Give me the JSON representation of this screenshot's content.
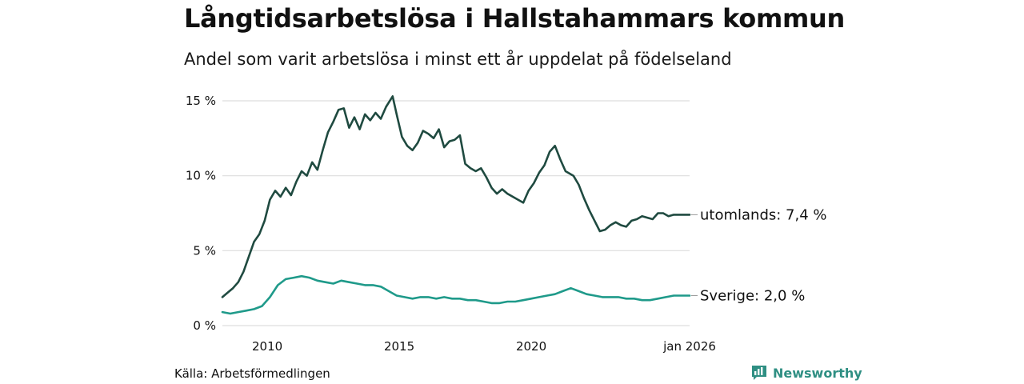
{
  "header": {
    "title": "Långtidsarbetslösa i Hallstahammars kommun",
    "subtitle": "Andel som varit arbetslösa i minst ett år uppdelat på födelseland"
  },
  "footer": {
    "source": "Källa: Arbetsförmedlingen",
    "brand": "Newsworthy"
  },
  "colors": {
    "utomlands": "#1f4a40",
    "sverige": "#1f9a8a",
    "grid": "#dddddd",
    "brand": "#2f8f83"
  },
  "chart_data": {
    "type": "line",
    "title": "Långtidsarbetslösa i Hallstahammars kommun",
    "subtitle": "Andel som varit arbetslösa i minst ett år uppdelat på födelseland",
    "xlabel": "",
    "ylabel": "",
    "x_range": [
      2008.3,
      2026.0
    ],
    "ylim": [
      0,
      15
    ],
    "y_ticks": [
      {
        "value": 0,
        "label": "0 %"
      },
      {
        "value": 5,
        "label": "5 %"
      },
      {
        "value": 10,
        "label": "10 %"
      },
      {
        "value": 15,
        "label": "15 %"
      }
    ],
    "x_ticks": [
      {
        "value": 2010,
        "label": "2010"
      },
      {
        "value": 2015,
        "label": "2015"
      },
      {
        "value": 2020,
        "label": "2020"
      },
      {
        "value": 2026,
        "label": "jan 2026"
      }
    ],
    "grid": true,
    "series": [
      {
        "name": "utomlands",
        "end_label": "utomlands: 7,4 %",
        "color": "#1f4a40",
        "x": [
          2008.3,
          2008.5,
          2008.7,
          2008.9,
          2009.1,
          2009.3,
          2009.5,
          2009.7,
          2009.9,
          2010.1,
          2010.3,
          2010.5,
          2010.7,
          2010.9,
          2011.1,
          2011.3,
          2011.5,
          2011.7,
          2011.9,
          2012.1,
          2012.3,
          2012.5,
          2012.7,
          2012.9,
          2013.1,
          2013.3,
          2013.5,
          2013.7,
          2013.9,
          2014.1,
          2014.3,
          2014.5,
          2014.75,
          2014.9,
          2015.1,
          2015.3,
          2015.5,
          2015.7,
          2015.9,
          2016.1,
          2016.3,
          2016.5,
          2016.7,
          2016.9,
          2017.1,
          2017.3,
          2017.5,
          2017.7,
          2017.9,
          2018.1,
          2018.3,
          2018.5,
          2018.7,
          2018.9,
          2019.1,
          2019.3,
          2019.5,
          2019.7,
          2019.9,
          2020.1,
          2020.3,
          2020.5,
          2020.7,
          2020.9,
          2021.1,
          2021.3,
          2021.6,
          2021.8,
          2022.0,
          2022.2,
          2022.4,
          2022.6,
          2022.8,
          2023.0,
          2023.2,
          2023.4,
          2023.6,
          2023.8,
          2024.0,
          2024.2,
          2024.4,
          2024.6,
          2024.8,
          2025.0,
          2025.2,
          2025.4,
          2025.6,
          2025.8,
          2026.0
        ],
        "values": [
          1.9,
          2.2,
          2.5,
          2.9,
          3.6,
          4.6,
          5.6,
          6.1,
          7.0,
          8.4,
          9.0,
          8.6,
          9.2,
          8.7,
          9.6,
          10.3,
          10.0,
          10.9,
          10.4,
          11.7,
          12.9,
          13.6,
          14.4,
          14.5,
          13.2,
          13.9,
          13.1,
          14.1,
          13.7,
          14.2,
          13.8,
          14.6,
          15.3,
          14.1,
          12.6,
          12.0,
          11.7,
          12.2,
          13.0,
          12.8,
          12.5,
          13.1,
          11.9,
          12.3,
          12.4,
          12.7,
          10.8,
          10.5,
          10.3,
          10.5,
          9.9,
          9.2,
          8.8,
          9.1,
          8.8,
          8.6,
          8.4,
          8.2,
          9.0,
          9.5,
          10.2,
          10.7,
          11.6,
          12.0,
          11.1,
          10.3,
          10.0,
          9.4,
          8.5,
          7.7,
          7.0,
          6.3,
          6.4,
          6.7,
          6.9,
          6.7,
          6.6,
          7.0,
          7.1,
          7.3,
          7.2,
          7.1,
          7.5,
          7.5,
          7.3,
          7.4,
          7.4,
          7.4,
          7.4
        ]
      },
      {
        "name": "Sverige",
        "end_label": "Sverige: 2,0 %",
        "color": "#1f9a8a",
        "x": [
          2008.3,
          2008.6,
          2008.9,
          2009.2,
          2009.5,
          2009.8,
          2010.1,
          2010.4,
          2010.7,
          2011.0,
          2011.3,
          2011.6,
          2011.9,
          2012.2,
          2012.5,
          2012.8,
          2013.1,
          2013.4,
          2013.7,
          2014.0,
          2014.3,
          2014.6,
          2014.9,
          2015.2,
          2015.5,
          2015.8,
          2016.1,
          2016.4,
          2016.7,
          2017.0,
          2017.3,
          2017.6,
          2017.9,
          2018.2,
          2018.5,
          2018.8,
          2019.1,
          2019.4,
          2019.7,
          2020.0,
          2020.3,
          2020.6,
          2020.9,
          2021.2,
          2021.5,
          2021.8,
          2022.1,
          2022.4,
          2022.7,
          2023.0,
          2023.3,
          2023.6,
          2023.9,
          2024.2,
          2024.5,
          2024.8,
          2025.1,
          2025.4,
          2025.7,
          2026.0
        ],
        "values": [
          0.9,
          0.8,
          0.9,
          1.0,
          1.1,
          1.3,
          1.9,
          2.7,
          3.1,
          3.2,
          3.3,
          3.2,
          3.0,
          2.9,
          2.8,
          3.0,
          2.9,
          2.8,
          2.7,
          2.7,
          2.6,
          2.3,
          2.0,
          1.9,
          1.8,
          1.9,
          1.9,
          1.8,
          1.9,
          1.8,
          1.8,
          1.7,
          1.7,
          1.6,
          1.5,
          1.5,
          1.6,
          1.6,
          1.7,
          1.8,
          1.9,
          2.0,
          2.1,
          2.3,
          2.5,
          2.3,
          2.1,
          2.0,
          1.9,
          1.9,
          1.9,
          1.8,
          1.8,
          1.7,
          1.7,
          1.8,
          1.9,
          2.0,
          2.0,
          2.0
        ]
      }
    ]
  }
}
